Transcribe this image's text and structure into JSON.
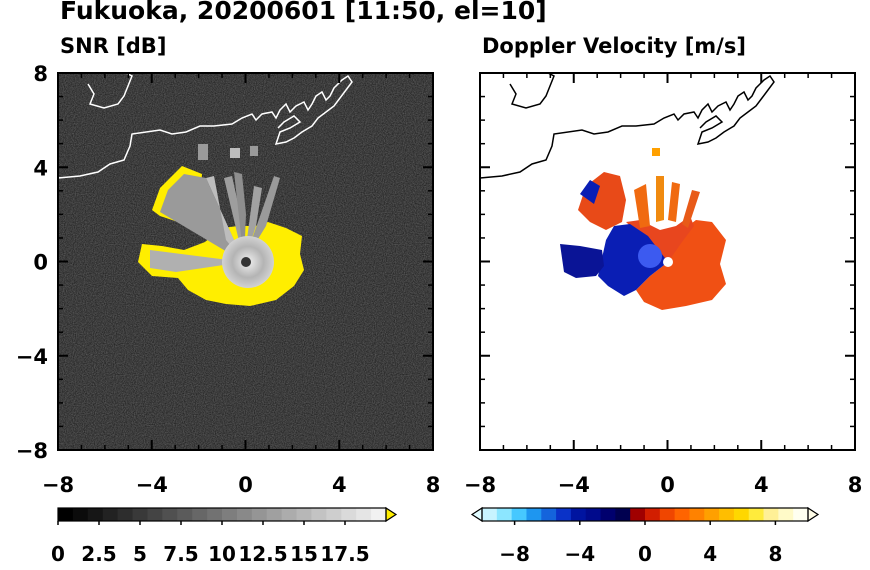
{
  "title": "Fukuoka, 20200601 [11:50, el=10]",
  "chart_data": [
    {
      "type": "heatmap",
      "title": "SNR [dB]",
      "xlim": [
        -8,
        8
      ],
      "ylim": [
        -8,
        8
      ],
      "xticks": [
        "−8",
        "−4",
        "0",
        "4",
        "8"
      ],
      "yticks": [
        "8",
        "4",
        "0",
        "−4",
        "−8"
      ],
      "background": "#141414",
      "colorbar": {
        "range": [
          0,
          20
        ],
        "extend": "max",
        "tick_labels": [
          "0",
          "2.5",
          "5",
          "7.5",
          "10",
          "12.5",
          "15",
          "17.5"
        ],
        "colors": [
          "#000000",
          "#0b0b0b",
          "#161616",
          "#222222",
          "#2d2d2d",
          "#393939",
          "#444444",
          "#505050",
          "#5b5b5b",
          "#676767",
          "#727272",
          "#7e7e7e",
          "#898989",
          "#959595",
          "#a0a0a0",
          "#acacac",
          "#b7b7b7",
          "#c3c3c3",
          "#cecece",
          "#dadada",
          "#e5e5e5",
          "#f1f1f1"
        ],
        "over_color": "#ffee00"
      }
    },
    {
      "type": "heatmap",
      "title": "Doppler Velocity [m/s]",
      "xlim": [
        -8,
        8
      ],
      "ylim": [
        -8,
        8
      ],
      "xticks": [
        "−8",
        "−4",
        "0",
        "4",
        "8"
      ],
      "yticks": [
        "8",
        "4",
        "0",
        "−4",
        "−8"
      ],
      "background": "#ffffff",
      "colorbar": {
        "range": [
          -10,
          10
        ],
        "extend": "both",
        "tick_labels": [
          "−8",
          "−4",
          "0",
          "4",
          "8"
        ],
        "colors": [
          "#c8f4ff",
          "#8ce6ff",
          "#46c8ff",
          "#1e96f0",
          "#1464dc",
          "#0a32c8",
          "#0014a0",
          "#000a8c",
          "#00006e",
          "#000050",
          "#a00000",
          "#d21e00",
          "#f04600",
          "#ff6400",
          "#ff8200",
          "#ffa000",
          "#ffbe00",
          "#ffd700",
          "#ffeb3c",
          "#fff096",
          "#fffac8",
          "#fffff0"
        ],
        "under_color": "#e0fbff",
        "over_color": "#fffde8"
      }
    }
  ]
}
